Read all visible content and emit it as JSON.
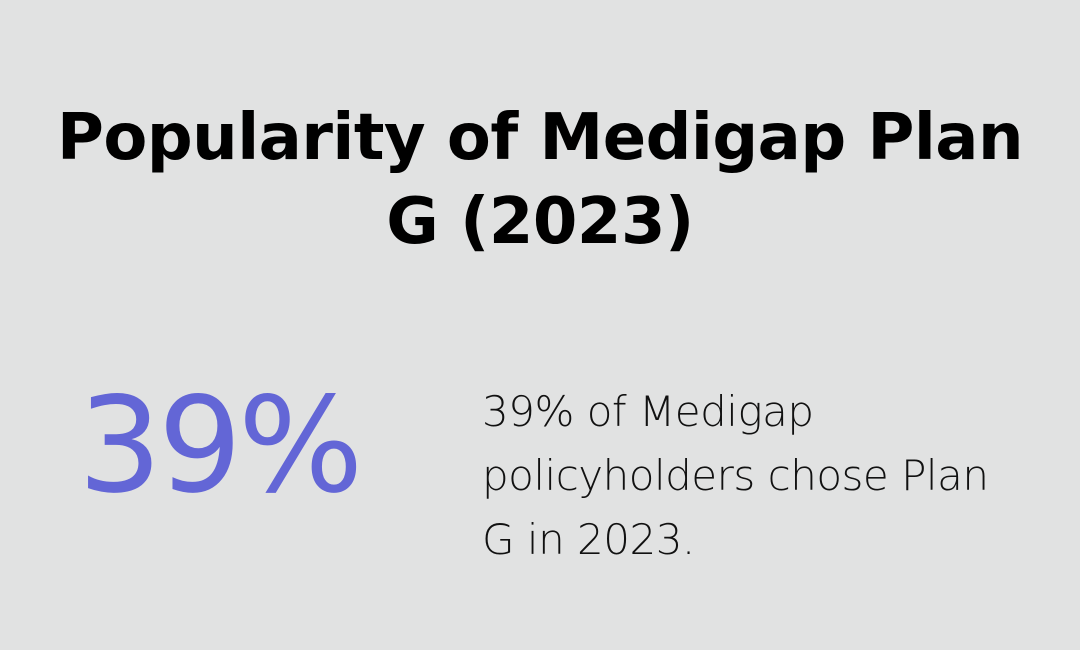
{
  "title": "Popularity of Medigap Plan G (2023)",
  "stat": {
    "value": "39%",
    "description": "39% of Medigap policyholders chose Plan G in 2023."
  },
  "colors": {
    "background": "#e1e2e2",
    "accent": "#6366d6",
    "text": "#000000"
  }
}
